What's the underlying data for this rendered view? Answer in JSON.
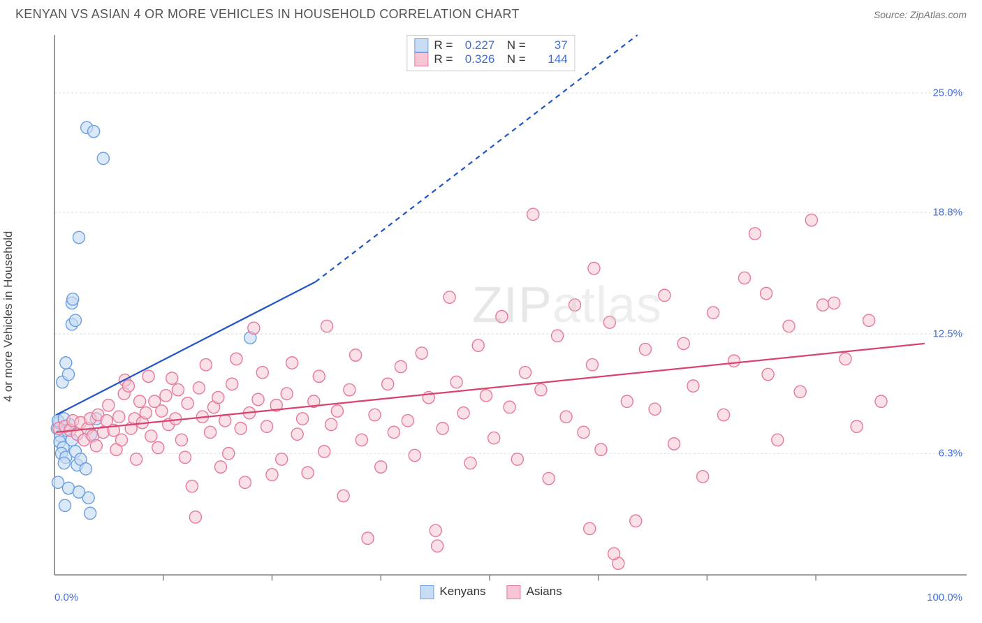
{
  "header": {
    "title": "KENYAN VS ASIAN 4 OR MORE VEHICLES IN HOUSEHOLD CORRELATION CHART",
    "source_prefix": "Source: ",
    "source_name": "ZipAtlas.com"
  },
  "ylabel": "4 or more Vehicles in Household",
  "watermark": {
    "part1": "ZIP",
    "part2": "atlas"
  },
  "chart": {
    "type": "scatter",
    "background_color": "#ffffff",
    "grid_color": "#dddddd",
    "axis_color": "#777777",
    "tick_color": "#888888",
    "xlim": [
      0,
      100
    ],
    "ylim": [
      0,
      28
    ],
    "x_ticks_minor": [
      12.5,
      25,
      37.5,
      50,
      62.5,
      75,
      87.5
    ],
    "x_labels": [
      {
        "value": 0,
        "text": "0.0%",
        "align": "left"
      },
      {
        "value": 100,
        "text": "100.0%",
        "align": "right"
      }
    ],
    "y_gridlines": [
      6.3,
      12.5,
      18.8,
      25.0
    ],
    "y_labels": [
      {
        "value": 6.3,
        "text": "6.3%"
      },
      {
        "value": 12.5,
        "text": "12.5%"
      },
      {
        "value": 18.8,
        "text": "18.8%"
      },
      {
        "value": 25.0,
        "text": "25.0%"
      }
    ],
    "marker_radius": 8.5,
    "marker_stroke_width": 1.4,
    "series": [
      {
        "name": "Kenyans",
        "fill": "#c8dcf4",
        "stroke": "#6b9fe0",
        "fill_opacity": 0.65,
        "trend": {
          "color": "#2456c7",
          "width": 2.2,
          "solid": {
            "x1": 0.2,
            "y1": 8.3,
            "x2": 30,
            "y2": 15.2
          },
          "dashed": {
            "x1": 30,
            "y1": 15.2,
            "x2": 67,
            "y2": 28
          }
        },
        "stats": {
          "R": "0.227",
          "N": "37"
        },
        "points": [
          [
            0.3,
            7.6
          ],
          [
            0.5,
            7.9
          ],
          [
            0.4,
            8.0
          ],
          [
            0.7,
            7.2
          ],
          [
            0.6,
            6.9
          ],
          [
            1.0,
            6.6
          ],
          [
            0.8,
            6.3
          ],
          [
            1.3,
            6.1
          ],
          [
            1.1,
            5.8
          ],
          [
            1.4,
            7.5
          ],
          [
            1.7,
            7.8
          ],
          [
            1.1,
            8.1
          ],
          [
            2.0,
            7.0
          ],
          [
            2.4,
            6.4
          ],
          [
            2.6,
            5.7
          ],
          [
            3.0,
            6.0
          ],
          [
            3.6,
            5.5
          ],
          [
            3.9,
            4.0
          ],
          [
            4.1,
            3.2
          ],
          [
            4.2,
            7.3
          ],
          [
            4.8,
            8.1
          ],
          [
            1.2,
            3.6
          ],
          [
            1.6,
            4.5
          ],
          [
            2.8,
            4.3
          ],
          [
            0.4,
            4.8
          ],
          [
            0.9,
            10.0
          ],
          [
            1.6,
            10.4
          ],
          [
            1.3,
            11.0
          ],
          [
            2.0,
            13.0
          ],
          [
            2.4,
            13.2
          ],
          [
            2.0,
            14.1
          ],
          [
            2.1,
            14.3
          ],
          [
            2.8,
            17.5
          ],
          [
            3.7,
            23.2
          ],
          [
            4.5,
            23.0
          ],
          [
            5.6,
            21.6
          ],
          [
            22.5,
            12.3
          ]
        ]
      },
      {
        "name": "Asians",
        "fill": "#f6c6d4",
        "stroke": "#e77a9a",
        "fill_opacity": 0.55,
        "trend": {
          "color": "#d9446e",
          "width": 2.2,
          "solid": {
            "x1": 0.2,
            "y1": 7.4,
            "x2": 100,
            "y2": 12.0
          }
        },
        "stats": {
          "R": "0.326",
          "N": "144"
        },
        "points": [
          [
            0.5,
            7.6
          ],
          [
            1.2,
            7.7
          ],
          [
            1.8,
            7.5
          ],
          [
            2.1,
            8.0
          ],
          [
            2.6,
            7.3
          ],
          [
            3.0,
            7.9
          ],
          [
            3.4,
            7.0
          ],
          [
            3.8,
            7.6
          ],
          [
            4.1,
            8.1
          ],
          [
            4.4,
            7.2
          ],
          [
            4.8,
            6.7
          ],
          [
            5.0,
            8.3
          ],
          [
            5.6,
            7.4
          ],
          [
            6.0,
            8.0
          ],
          [
            6.2,
            8.8
          ],
          [
            6.8,
            7.5
          ],
          [
            7.1,
            6.5
          ],
          [
            7.4,
            8.2
          ],
          [
            7.7,
            7.0
          ],
          [
            8.0,
            9.4
          ],
          [
            8.1,
            10.1
          ],
          [
            8.5,
            9.8
          ],
          [
            8.8,
            7.6
          ],
          [
            9.2,
            8.1
          ],
          [
            9.4,
            6.0
          ],
          [
            9.8,
            9.0
          ],
          [
            10.1,
            7.9
          ],
          [
            10.5,
            8.4
          ],
          [
            10.8,
            10.3
          ],
          [
            11.1,
            7.2
          ],
          [
            11.5,
            9.0
          ],
          [
            11.9,
            6.6
          ],
          [
            12.3,
            8.5
          ],
          [
            12.8,
            9.3
          ],
          [
            13.1,
            7.8
          ],
          [
            13.5,
            10.2
          ],
          [
            13.9,
            8.1
          ],
          [
            14.2,
            9.6
          ],
          [
            14.6,
            7.0
          ],
          [
            15.0,
            6.1
          ],
          [
            15.3,
            8.9
          ],
          [
            15.8,
            4.6
          ],
          [
            16.2,
            3.0
          ],
          [
            16.6,
            9.7
          ],
          [
            17.0,
            8.2
          ],
          [
            17.4,
            10.9
          ],
          [
            17.9,
            7.4
          ],
          [
            18.3,
            8.7
          ],
          [
            18.8,
            9.2
          ],
          [
            19.1,
            5.6
          ],
          [
            19.6,
            8.0
          ],
          [
            20.0,
            6.3
          ],
          [
            20.4,
            9.9
          ],
          [
            20.9,
            11.2
          ],
          [
            21.4,
            7.6
          ],
          [
            21.9,
            4.8
          ],
          [
            22.4,
            8.4
          ],
          [
            22.9,
            12.8
          ],
          [
            23.4,
            9.1
          ],
          [
            23.9,
            10.5
          ],
          [
            24.4,
            7.7
          ],
          [
            25.0,
            5.2
          ],
          [
            25.5,
            8.8
          ],
          [
            26.1,
            6.0
          ],
          [
            26.7,
            9.4
          ],
          [
            27.3,
            11.0
          ],
          [
            27.9,
            7.3
          ],
          [
            28.5,
            8.1
          ],
          [
            29.1,
            5.3
          ],
          [
            29.8,
            9.0
          ],
          [
            30.4,
            10.3
          ],
          [
            31.0,
            6.4
          ],
          [
            31.3,
            12.9
          ],
          [
            31.8,
            7.8
          ],
          [
            32.5,
            8.5
          ],
          [
            33.2,
            4.1
          ],
          [
            33.9,
            9.6
          ],
          [
            34.6,
            11.4
          ],
          [
            35.3,
            7.0
          ],
          [
            36.0,
            1.9
          ],
          [
            36.8,
            8.3
          ],
          [
            37.5,
            5.6
          ],
          [
            38.3,
            9.9
          ],
          [
            39.0,
            7.4
          ],
          [
            39.8,
            10.8
          ],
          [
            40.6,
            8.0
          ],
          [
            41.4,
            6.2
          ],
          [
            42.2,
            11.5
          ],
          [
            43.0,
            9.2
          ],
          [
            43.8,
            2.3
          ],
          [
            44.6,
            7.6
          ],
          [
            45.4,
            14.4
          ],
          [
            44.0,
            1.5
          ],
          [
            46.2,
            10.0
          ],
          [
            47.0,
            8.4
          ],
          [
            47.8,
            5.8
          ],
          [
            48.7,
            11.9
          ],
          [
            49.6,
            9.3
          ],
          [
            50.5,
            7.1
          ],
          [
            51.4,
            13.4
          ],
          [
            52.3,
            8.7
          ],
          [
            53.2,
            6.0
          ],
          [
            54.1,
            10.5
          ],
          [
            55.0,
            18.7
          ],
          [
            55.9,
            9.6
          ],
          [
            56.8,
            5.0
          ],
          [
            57.8,
            12.4
          ],
          [
            58.8,
            8.2
          ],
          [
            59.8,
            14.0
          ],
          [
            60.8,
            7.4
          ],
          [
            61.8,
            10.9
          ],
          [
            62.8,
            6.5
          ],
          [
            63.8,
            13.1
          ],
          [
            64.8,
            0.6
          ],
          [
            64.3,
            1.1
          ],
          [
            65.8,
            9.0
          ],
          [
            66.8,
            2.8
          ],
          [
            67.9,
            11.7
          ],
          [
            69.0,
            8.6
          ],
          [
            70.1,
            14.5
          ],
          [
            62.0,
            15.9
          ],
          [
            71.2,
            6.8
          ],
          [
            72.3,
            12.0
          ],
          [
            73.4,
            9.8
          ],
          [
            74.5,
            5.1
          ],
          [
            75.7,
            13.6
          ],
          [
            76.9,
            8.3
          ],
          [
            78.1,
            11.1
          ],
          [
            79.3,
            15.4
          ],
          [
            80.5,
            17.7
          ],
          [
            81.8,
            14.6
          ],
          [
            83.1,
            7.0
          ],
          [
            84.4,
            12.9
          ],
          [
            82.0,
            10.4
          ],
          [
            85.7,
            9.5
          ],
          [
            87.0,
            18.4
          ],
          [
            88.3,
            14.0
          ],
          [
            89.6,
            14.1
          ],
          [
            90.9,
            11.2
          ],
          [
            92.2,
            7.7
          ],
          [
            93.6,
            13.2
          ],
          [
            95.0,
            9.0
          ],
          [
            61.5,
            2.4
          ]
        ]
      }
    ]
  },
  "legend_bottom": [
    {
      "label": "Kenyans",
      "fill": "#c8dcf4",
      "stroke": "#6b9fe0"
    },
    {
      "label": "Asians",
      "fill": "#f6c6d4",
      "stroke": "#e77a9a"
    }
  ]
}
